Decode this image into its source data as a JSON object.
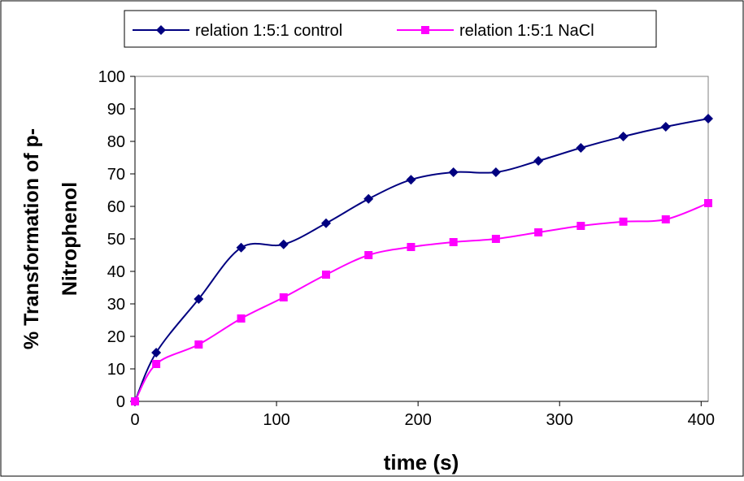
{
  "chart_data": {
    "type": "line",
    "xlabel": "time (s)",
    "ylabel_lines": [
      "% Transformation of p-",
      "Nitrophenol"
    ],
    "xlim": [
      0,
      405
    ],
    "ylim": [
      0,
      100
    ],
    "x_ticks": [
      0,
      100,
      200,
      300,
      400
    ],
    "y_ticks": [
      0,
      10,
      20,
      30,
      40,
      50,
      60,
      70,
      80,
      90,
      100
    ],
    "grid": false,
    "legend_position": "top",
    "series": [
      {
        "name": "relation 1:5:1 control",
        "color": "#000080",
        "marker": "diamond",
        "x": [
          0,
          15,
          45,
          75,
          105,
          135,
          165,
          195,
          225,
          255,
          285,
          315,
          345,
          375,
          405
        ],
        "y": [
          0,
          15,
          31.5,
          47.3,
          48.3,
          54.8,
          62.3,
          68.2,
          70.5,
          70.5,
          74,
          78,
          81.5,
          84.5,
          87
        ]
      },
      {
        "name": "relation 1:5:1 NaCl",
        "color": "#ff00ff",
        "marker": "square",
        "x": [
          0,
          15,
          45,
          75,
          105,
          135,
          165,
          195,
          225,
          255,
          285,
          315,
          345,
          375,
          405
        ],
        "y": [
          0,
          11.5,
          17.5,
          25.5,
          32,
          39,
          45,
          47.5,
          49,
          50,
          52,
          54,
          55.3,
          56,
          61
        ]
      }
    ]
  }
}
